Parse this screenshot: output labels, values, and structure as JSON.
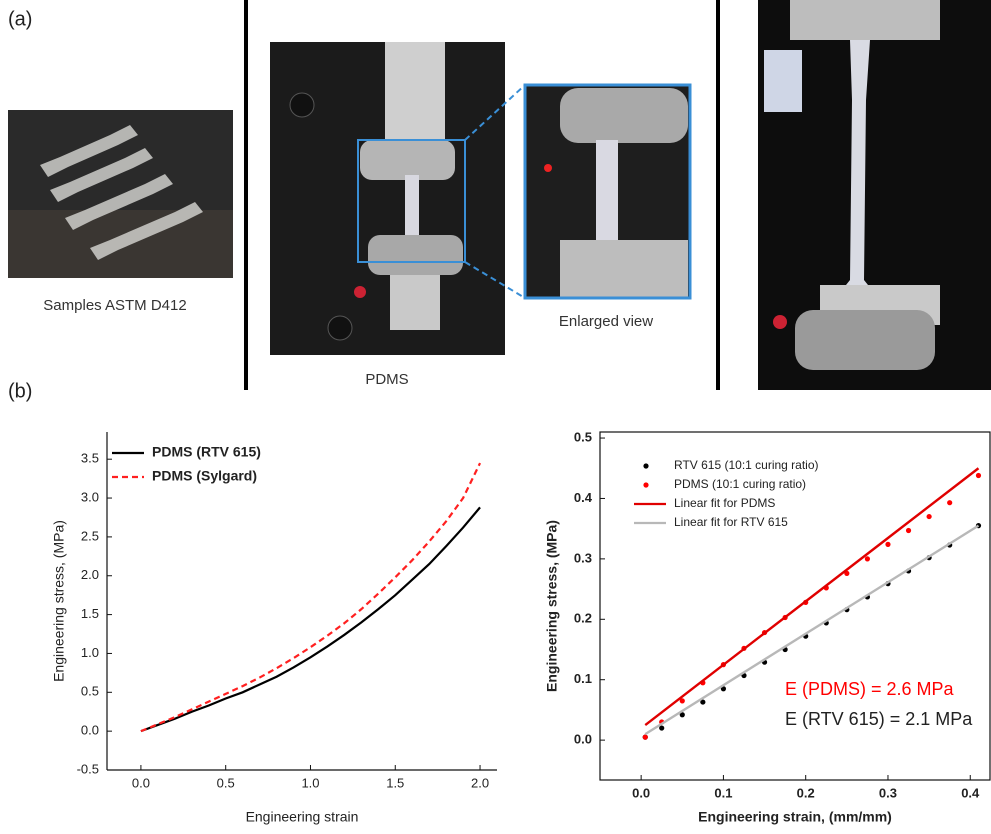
{
  "panel_labels": [
    "(a)",
    "(b)"
  ],
  "photo_captions": [
    "Samples ASTM D412",
    "PDMS",
    "Enlarged view"
  ],
  "chart_data": [
    {
      "type": "line",
      "xlabel": "Engineering strain",
      "ylabel": "Engineering stress, (MPa)",
      "x": [
        0,
        0.1,
        0.2,
        0.3,
        0.4,
        0.5,
        0.6,
        0.7,
        0.8,
        0.9,
        1.0,
        1.1,
        1.2,
        1.3,
        1.4,
        1.5,
        1.6,
        1.7,
        1.8,
        1.9,
        2.0
      ],
      "series": [
        {
          "name": "PDMS (RTV 615)",
          "color": "#000000",
          "dash": false,
          "values": [
            0,
            0.08,
            0.16,
            0.25,
            0.33,
            0.42,
            0.5,
            0.6,
            0.7,
            0.82,
            0.95,
            1.09,
            1.24,
            1.4,
            1.57,
            1.75,
            1.95,
            2.15,
            2.38,
            2.62,
            2.88
          ]
        },
        {
          "name": "PDMS (Sylgard)",
          "color": "#ff2020",
          "dash": true,
          "values": [
            0,
            0.09,
            0.18,
            0.28,
            0.38,
            0.48,
            0.58,
            0.69,
            0.81,
            0.94,
            1.08,
            1.23,
            1.39,
            1.57,
            1.77,
            1.98,
            2.2,
            2.44,
            2.7,
            3.0,
            3.45
          ]
        }
      ],
      "xlim": [
        -0.2,
        2.1
      ],
      "ylim": [
        -0.5,
        3.85
      ],
      "xticks": [
        {
          "value": 0,
          "label": "0.0"
        },
        0.5,
        {
          "value": 1,
          "label": "1.0"
        },
        1.5,
        {
          "value": 2,
          "label": "2.0"
        }
      ],
      "yticks": [
        -0.5,
        {
          "value": 0,
          "label": "0.0"
        },
        0.5,
        {
          "value": 1,
          "label": "1.0"
        },
        1.5,
        {
          "value": 2,
          "label": "2.0"
        },
        2.5,
        {
          "value": 3,
          "label": "3.0"
        },
        3.5
      ],
      "legend": "upper left"
    },
    {
      "type": "scatter",
      "xlabel": "Engineering strain, (mm/mm)",
      "ylabel": "Engineering stress, (MPa)",
      "series": [
        {
          "name": "RTV 615 (10:1 curing ratio)",
          "color": "#000000",
          "mode": "markers",
          "x": [
            0.005,
            0.025,
            0.05,
            0.075,
            0.1,
            0.125,
            0.15,
            0.175,
            0.2,
            0.225,
            0.25,
            0.275,
            0.3,
            0.325,
            0.35,
            0.375,
            0.41
          ],
          "values": [
            0.005,
            0.02,
            0.042,
            0.063,
            0.085,
            0.107,
            0.129,
            0.15,
            0.172,
            0.194,
            0.216,
            0.237,
            0.259,
            0.28,
            0.302,
            0.323,
            0.355
          ]
        },
        {
          "name": "PDMS (10:1 curing ratio)",
          "color": "#ff0000",
          "mode": "markers",
          "x": [
            0.005,
            0.025,
            0.05,
            0.075,
            0.1,
            0.125,
            0.15,
            0.175,
            0.2,
            0.225,
            0.25,
            0.275,
            0.3,
            0.325,
            0.35,
            0.375,
            0.41
          ],
          "values": [
            0.005,
            0.03,
            0.065,
            0.095,
            0.125,
            0.152,
            0.178,
            0.203,
            0.228,
            0.252,
            0.276,
            0.3,
            0.324,
            0.347,
            0.37,
            0.393,
            0.438
          ]
        },
        {
          "name": "Linear fit for PDMS",
          "color": "#e00000",
          "mode": "line",
          "x": [
            0.005,
            0.41
          ],
          "values": [
            0.025,
            0.45
          ]
        },
        {
          "name": "Linear fit for RTV 615",
          "color": "#b8b8b8",
          "mode": "line",
          "x": [
            0.005,
            0.41
          ],
          "values": [
            0.01,
            0.355
          ]
        }
      ],
      "xlim": [
        -0.05,
        0.424
      ],
      "ylim": [
        -0.066,
        0.51
      ],
      "xticks": [
        {
          "value": 0,
          "label": "0.0"
        },
        0.1,
        0.2,
        0.3,
        0.4
      ],
      "yticks": [
        {
          "value": 0,
          "label": "0.0"
        },
        0.1,
        0.2,
        0.3,
        0.4,
        0.5
      ],
      "legend": "upper left",
      "annotations": [
        {
          "text": "E (PDMS) = 2.6 MPa",
          "color": "#ff0000"
        },
        {
          "text": "E (RTV 615) = 2.1 MPa",
          "color": "#222222"
        }
      ]
    }
  ]
}
